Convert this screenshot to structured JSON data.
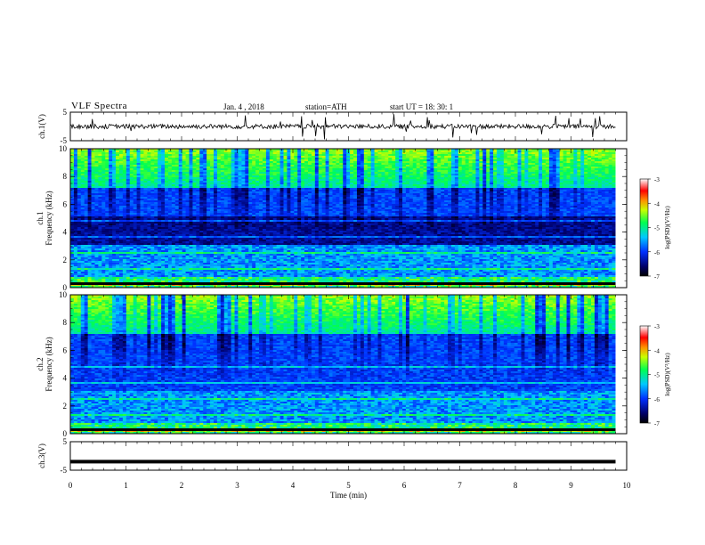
{
  "header": {
    "title": "VLF  Spectra",
    "date": "Jan. 4 , 2018",
    "station": "station=ATH",
    "start_ut": "start  UT  =  18: 30: 1"
  },
  "chart_data": [
    {
      "type": "line",
      "ylabel": "ch.1(V)",
      "ylim": [
        -5,
        5
      ],
      "y_ticks": [
        "5",
        "-5"
      ],
      "baseline": 0,
      "description_level": "noisy signal around 0 V with frequent spikes"
    },
    {
      "type": "heatmap",
      "ylabel": "ch.1\nFrequency  (kHz)",
      "ylabel_line1": "ch.1",
      "ylabel_line2": "Frequency  (kHz)",
      "ylim": [
        0,
        10
      ],
      "y_ticks": [
        "0",
        "2",
        "4",
        "6",
        "8",
        "10"
      ],
      "colorbar": {
        "label": "log(PSD)(V²/Hz)",
        "range": [
          -7,
          -3
        ],
        "ticks": [
          "-3",
          "-4",
          "-5",
          "-6",
          "-7"
        ]
      }
    },
    {
      "type": "heatmap",
      "ylabel": "ch.2\nFrequency  (kHz)",
      "ylabel_line1": "ch.2",
      "ylabel_line2": "Frequency  (kHz)",
      "ylim": [
        0,
        10
      ],
      "y_ticks": [
        "0",
        "2",
        "4",
        "6",
        "8",
        "10"
      ],
      "colorbar": {
        "label": "log(PSD)(V²/Hz)",
        "range": [
          -7,
          -3
        ],
        "ticks": [
          "-3",
          "-4",
          "-5",
          "-6",
          "-7"
        ]
      }
    },
    {
      "type": "line",
      "ylabel": "ch.3(V)",
      "ylim": [
        -5,
        5
      ],
      "y_ticks": [
        "5",
        "-5"
      ],
      "baseline": -2
    }
  ],
  "x_axis": {
    "xlabel": "Time  (min)",
    "xlim": [
      0,
      10
    ],
    "ticks": [
      "0",
      "1",
      "2",
      "3",
      "4",
      "5",
      "6",
      "7",
      "8",
      "9",
      "10"
    ],
    "data_end": 9.8
  }
}
